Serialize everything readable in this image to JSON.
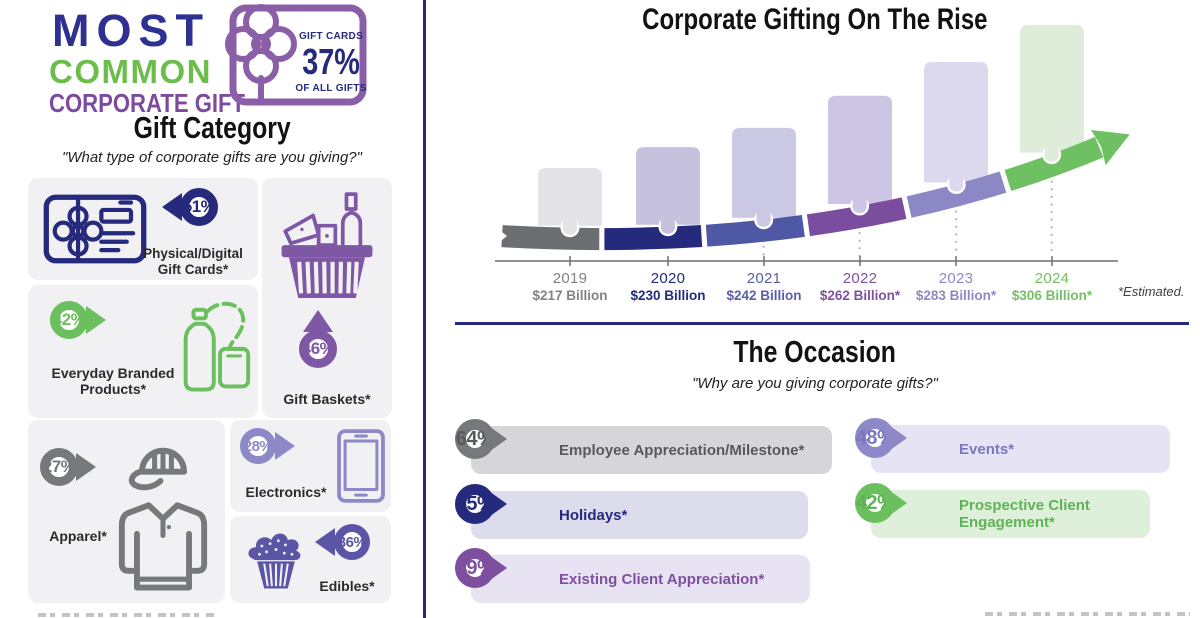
{
  "colors": {
    "divider": "#262a7c"
  },
  "brand": {
    "line1": "MOST",
    "line2": "COMMON",
    "line3": "CORPORATE GIFT",
    "badge_top": "GIFT CARDS",
    "badge_value": "37%",
    "badge_bottom": "OF ALL GIFTS",
    "colors": {
      "navy": "#2e3192",
      "green": "#6cbe4c",
      "purple": "#7e4aa0",
      "card_purple": "#8a5fa8",
      "card_text": "#262a7c"
    }
  },
  "gift_category": {
    "title": "Gift Category",
    "subtitle": "\"What type of corporate gifts are you giving?\"",
    "items": [
      {
        "label": "Physical/Digital Gift Cards*",
        "value": "51%",
        "color": "#262a7c"
      },
      {
        "label": "Gift Baskets*",
        "value": "46%",
        "color": "#7e57a5"
      },
      {
        "label": "Everyday Branded Products*",
        "value": "42%",
        "color": "#6cbf5e"
      },
      {
        "label": "Apparel*",
        "value": "27%",
        "color": "#77787b"
      },
      {
        "label": "Electronics*",
        "value": "28%",
        "color": "#8d89c8"
      },
      {
        "label": "Edibles*",
        "value": "36%",
        "color": "#5a55a5"
      }
    ]
  },
  "rise_chart": {
    "title": "Corporate Gifting On The Rise",
    "estimated_note": "*Estimated.",
    "years": [
      {
        "year": "2019",
        "label": "$217 Billion",
        "value": 217,
        "color": "#808285",
        "bar_color": "#e4e4e8"
      },
      {
        "year": "2020",
        "label": "$230 Billion",
        "value": 230,
        "color": "#262a7c",
        "bar_color": "#c6c2de"
      },
      {
        "year": "2021",
        "label": "$242 Billion",
        "value": 242,
        "color": "#5b5ea6",
        "bar_color": "#cbc8e3"
      },
      {
        "year": "2022",
        "label": "$262 Billion*",
        "value": 262,
        "color": "#7e52a0",
        "bar_color": "#cdc5e4"
      },
      {
        "year": "2023",
        "label": "$283 Billion*",
        "value": 283,
        "color": "#8d89c8",
        "bar_color": "#dcd9ee"
      },
      {
        "year": "2024",
        "label": "$306 Billion*",
        "value": 306,
        "color": "#74bf63",
        "bar_color": "#dfecda"
      }
    ],
    "arrow_colors": [
      "#6d6e71",
      "#262a7c",
      "#4f58a5",
      "#7b4d9f",
      "#8c88c6",
      "#6fbf63"
    ]
  },
  "occasion": {
    "title": "The Occasion",
    "subtitle": "\"Why are you giving corporate gifts?\"",
    "items": [
      {
        "label": "Employee Appreciation/Milestone*",
        "value": "64%",
        "color": "#58595b",
        "ring": "#77787b",
        "bar_color": "#d6d6d9"
      },
      {
        "label": "Holidays*",
        "value": "55%",
        "color": "#262a7c",
        "ring": "#262a7c",
        "bar_color": "#dcdcec"
      },
      {
        "label": "Existing Client Appreciation*",
        "value": "49%",
        "color": "#7e4f9f",
        "ring": "#7e4f9f",
        "bar_color": "#e7e3f2"
      },
      {
        "label": "Events*",
        "value": "48%",
        "color": "#7b76bf",
        "ring": "#8d89c8",
        "bar_color": "#e5e3f4"
      },
      {
        "label": "Prospective Client Engagement*",
        "value": "42%",
        "color": "#5fb357",
        "ring": "#6bbf5f",
        "bar_color": "#def0d9"
      }
    ]
  },
  "chart_data": [
    {
      "type": "bar",
      "title": "Corporate Gifting On The Rise",
      "categories": [
        "2019",
        "2020",
        "2021",
        "2022",
        "2023",
        "2024"
      ],
      "values": [
        217,
        230,
        242,
        262,
        283,
        306
      ],
      "value_labels": [
        "$217 Billion",
        "$230 Billion",
        "$242 Billion",
        "$262 Billion*",
        "$283 Billion*",
        "$306 Billion*"
      ],
      "unit": "$ Billion",
      "annotations": [
        "*Estimated."
      ],
      "legend": false,
      "grid": false,
      "ylim": [
        200,
        320
      ]
    },
    {
      "type": "bar",
      "title": "Gift Category",
      "subtitle": "\"What type of corporate gifts are you giving?\"",
      "categories": [
        "Physical/Digital Gift Cards*",
        "Gift Baskets*",
        "Everyday Branded Products*",
        "Edibles*",
        "Electronics*",
        "Apparel*"
      ],
      "values": [
        51,
        46,
        42,
        36,
        28,
        27
      ],
      "unit": "%"
    },
    {
      "type": "bar",
      "title": "The Occasion",
      "subtitle": "\"Why are you giving corporate gifts?\"",
      "categories": [
        "Employee Appreciation/Milestone*",
        "Holidays*",
        "Existing Client Appreciation*",
        "Events*",
        "Prospective Client Engagement*"
      ],
      "values": [
        64,
        55,
        49,
        48,
        42
      ],
      "unit": "%"
    },
    {
      "type": "bar",
      "title": "Most Common Corporate Gift",
      "categories": [
        "Gift Cards"
      ],
      "values": [
        37
      ],
      "unit": "% of all gifts"
    }
  ]
}
